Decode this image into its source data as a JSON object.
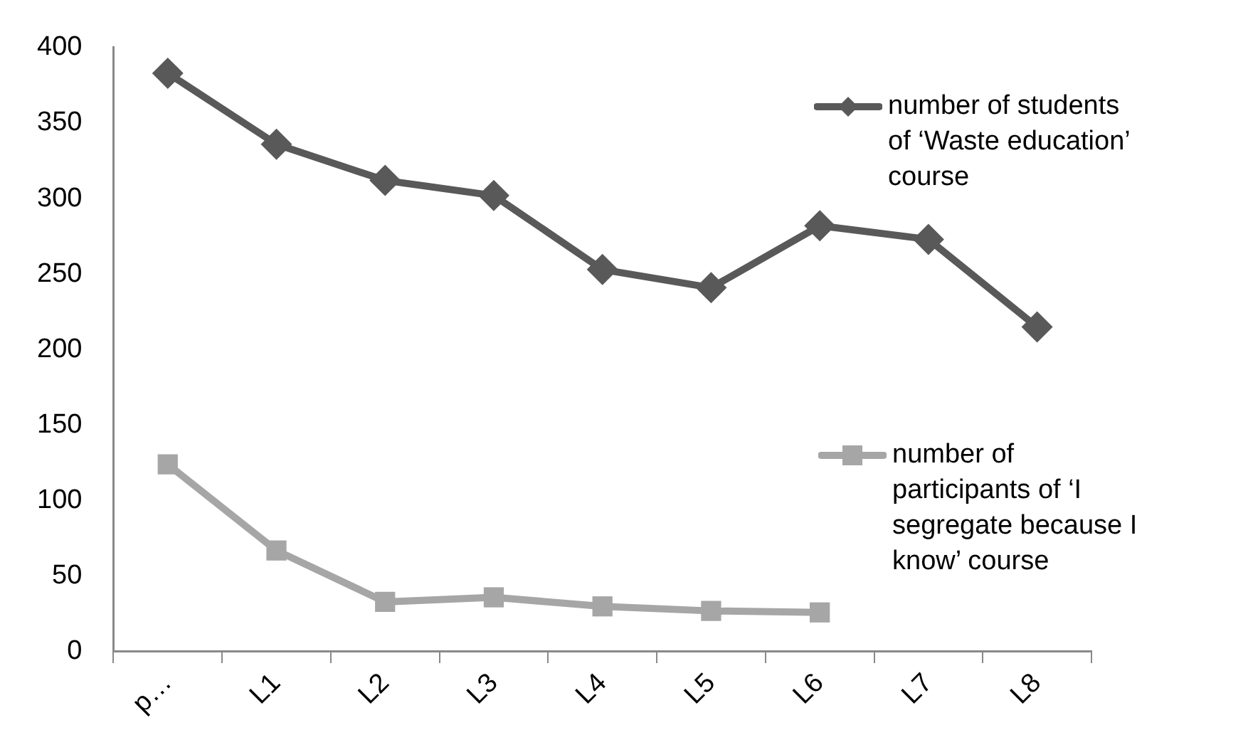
{
  "chart_data": {
    "type": "line",
    "categories": [
      "p…",
      "L1",
      "L2",
      "L3",
      "L4",
      "L5",
      "L6",
      "L7",
      "L8"
    ],
    "series": [
      {
        "name": "number of students of ‘Waste education’ course",
        "color": "#595959",
        "marker": "diamond",
        "values": [
          383,
          336,
          312,
          302,
          253,
          241,
          282,
          273,
          215
        ]
      },
      {
        "name": "number of participants of ‘I segregate because I know’ course",
        "color": "#a6a6a6",
        "marker": "square",
        "values": [
          124,
          67,
          33,
          36,
          30,
          27,
          26,
          null,
          null
        ]
      }
    ],
    "ylim": [
      0,
      400
    ],
    "yticks": [
      0,
      50,
      100,
      150,
      200,
      250,
      300,
      350,
      400
    ],
    "grid": false,
    "legend": "right",
    "line_style": "solid"
  }
}
